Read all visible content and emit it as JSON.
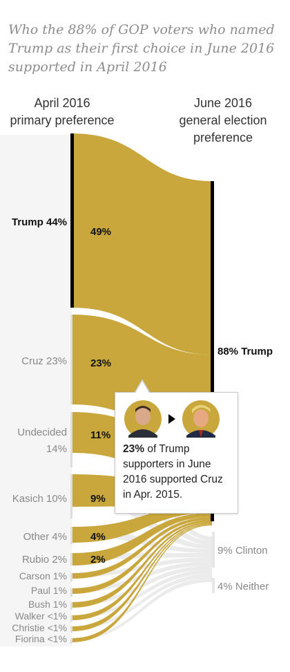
{
  "title": "Who the 88% of GOP voters who named Trump as their first choice in June 2016 supported in April 2016",
  "left_header": [
    "April 2016",
    "primary preference"
  ],
  "right_header": [
    "June 2016",
    "general election",
    "preference"
  ],
  "tooltip": {
    "bold": "23%",
    "text": " of Trump supporters in June 2016 supported Cruz in Apr. 2015.",
    "from_icon": "cruz-portrait-icon",
    "to_icon": "trump-portrait-icon"
  },
  "colors": {
    "flow": "#c9a73c",
    "gray_flow": "#e2e2e2",
    "bar": "#000000",
    "text": "#333333",
    "muted": "#888888"
  },
  "chart_data": {
    "type": "sankey",
    "left_nodes": [
      {
        "label": "Trump",
        "value_label": "44%",
        "to_trump_label": "49%",
        "highlight": true
      },
      {
        "label": "Cruz",
        "value_label": "23%",
        "to_trump_label": "23%"
      },
      {
        "label": "Undecided",
        "value_label": "14%",
        "to_trump_label": "11%"
      },
      {
        "label": "Kasich",
        "value_label": "10%",
        "to_trump_label": "9%"
      },
      {
        "label": "Other",
        "value_label": "4%",
        "to_trump_label": "4%"
      },
      {
        "label": "Rubio",
        "value_label": "2%",
        "to_trump_label": "2%"
      },
      {
        "label": "Carson",
        "value_label": "1%"
      },
      {
        "label": "Paul",
        "value_label": "1%"
      },
      {
        "label": "Bush",
        "value_label": "1%"
      },
      {
        "label": "Walker",
        "value_label": "<1%"
      },
      {
        "label": "Christie",
        "value_label": "<1%"
      },
      {
        "label": "Fiorina",
        "value_label": "<1%"
      }
    ],
    "right_nodes": [
      {
        "label": "Trump",
        "value_label": "88%",
        "highlight": true
      },
      {
        "label": "Clinton",
        "value_label": "9%"
      },
      {
        "label": "Neither",
        "value_label": "4%"
      }
    ]
  }
}
